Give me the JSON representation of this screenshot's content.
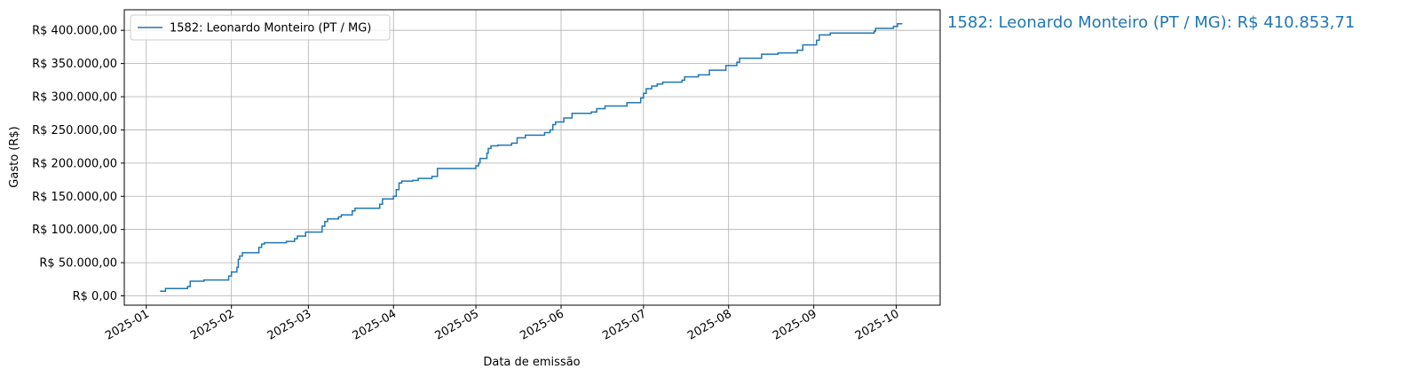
{
  "chart_data": {
    "type": "line",
    "step": true,
    "annotation": "1582: Leonardo Monteiro (PT / MG): R$ 410.853,71",
    "xlabel": "Data de emissão",
    "ylabel": "Gasto (R$)",
    "grid": true,
    "legend": "upper left",
    "xlim": [
      -8,
      289
    ],
    "ylim": [
      -14000,
      431000
    ],
    "xticks": [
      {
        "value": 0,
        "label": "2025-01"
      },
      {
        "value": 31,
        "label": "2025-02"
      },
      {
        "value": 59,
        "label": "2025-03"
      },
      {
        "value": 90,
        "label": "2025-04"
      },
      {
        "value": 120,
        "label": "2025-05"
      },
      {
        "value": 151,
        "label": "2025-06"
      },
      {
        "value": 181,
        "label": "2025-07"
      },
      {
        "value": 212,
        "label": "2025-08"
      },
      {
        "value": 243,
        "label": "2025-09"
      },
      {
        "value": 273,
        "label": "2025-10"
      }
    ],
    "yticks": [
      {
        "value": 0,
        "label": "R$ 0,00"
      },
      {
        "value": 50000,
        "label": "R$ 50.000,00"
      },
      {
        "value": 100000,
        "label": "R$ 100.000,00"
      },
      {
        "value": 150000,
        "label": "R$ 150.000,00"
      },
      {
        "value": 200000,
        "label": "R$ 200.000,00"
      },
      {
        "value": 250000,
        "label": "R$ 250.000,00"
      },
      {
        "value": 300000,
        "label": "R$ 300.000,00"
      },
      {
        "value": 350000,
        "label": "R$ 350.000,00"
      },
      {
        "value": 400000,
        "label": "R$ 400.000,00"
      }
    ],
    "series": [
      {
        "name": "1582: Leonardo Monteiro (PT / MG)",
        "color": "#1f77b4",
        "x": [
          5,
          7,
          15,
          16,
          21,
          30,
          31,
          33,
          33.5,
          34,
          35,
          41,
          42,
          43,
          51,
          54,
          55,
          58,
          64,
          65,
          66,
          70,
          71,
          75,
          76,
          85,
          86,
          90,
          91,
          92,
          93,
          97,
          99,
          104,
          106,
          120,
          121,
          121.5,
          124,
          124.5,
          125.5,
          128,
          133,
          135,
          138,
          145,
          147,
          148,
          149,
          152,
          155,
          162,
          164,
          167,
          175,
          180,
          181,
          182,
          184,
          186,
          188,
          195,
          196,
          201,
          205,
          211,
          215,
          216,
          224,
          230,
          237,
          239,
          244,
          245,
          249,
          265,
          265.5,
          272,
          273.5,
          275
        ],
        "values": [
          7000,
          11000,
          14000,
          22000,
          24000,
          30000,
          36000,
          43000,
          55000,
          60000,
          65000,
          73000,
          78000,
          80000,
          82000,
          86000,
          90000,
          96000,
          105000,
          112000,
          116000,
          119000,
          122000,
          128000,
          132000,
          138000,
          146000,
          150000,
          160000,
          170000,
          173000,
          174000,
          177000,
          180000,
          192000,
          196000,
          200000,
          207000,
          215000,
          222000,
          226000,
          227000,
          230000,
          238000,
          242000,
          246000,
          250000,
          258000,
          262000,
          268000,
          275000,
          277000,
          282000,
          286000,
          291000,
          298000,
          305000,
          312000,
          316000,
          319000,
          322000,
          325000,
          330000,
          333000,
          340000,
          347000,
          352000,
          358000,
          364000,
          366000,
          370000,
          378000,
          385000,
          393000,
          396000,
          399000,
          403000,
          406000,
          410000,
          410853.71
        ]
      }
    ]
  }
}
